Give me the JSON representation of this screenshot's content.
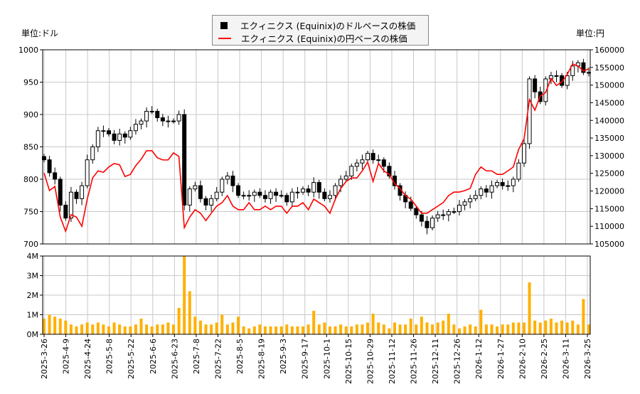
{
  "units": {
    "left": "単位:ドル",
    "right": "単位:円"
  },
  "legend": {
    "usd": "エクィニクス (Equinix)のドルベースの株価",
    "jpy": "エクィニクス (Equinix)の円ベースの株価"
  },
  "colors": {
    "usd": "#000000",
    "jpy": "#ff0000",
    "volume": "#ffb000",
    "grid": "#c8c8c8"
  },
  "chart_data": [
    {
      "type": "candlestick+line",
      "y_left": {
        "label": "単位:ドル",
        "range": [
          700,
          1000
        ],
        "ticks": [
          "700",
          "750",
          "800",
          "850",
          "900",
          "950",
          "1000"
        ]
      },
      "y_right": {
        "label": "単位:円",
        "range": [
          105000,
          160000
        ],
        "ticks": [
          "105000",
          "110000",
          "115000",
          "120000",
          "125000",
          "130000",
          "135000",
          "140000",
          "145000",
          "150000",
          "155000",
          "160000"
        ]
      },
      "grid": true,
      "legend_position": "top-center",
      "series": [
        {
          "name": "エクィニクス (Equinix)のドルベースの株価",
          "axis": "left",
          "close": [
            830,
            810,
            800,
            760,
            740,
            780,
            770,
            790,
            830,
            850,
            875,
            875,
            870,
            860,
            870,
            865,
            875,
            885,
            890,
            905,
            905,
            895,
            890,
            890,
            890,
            900,
            760,
            785,
            790,
            770,
            760,
            770,
            780,
            800,
            805,
            790,
            775,
            775,
            775,
            780,
            775,
            770,
            780,
            775,
            775,
            765,
            780,
            780,
            785,
            780,
            795,
            780,
            770,
            775,
            790,
            800,
            805,
            820,
            825,
            830,
            840,
            830,
            830,
            820,
            805,
            790,
            775,
            765,
            755,
            745,
            735,
            725,
            740,
            745,
            745,
            750,
            750,
            760,
            765,
            770,
            775,
            785,
            780,
            790,
            795,
            790,
            790,
            800,
            825,
            855,
            955,
            935,
            920,
            955,
            960,
            960,
            945,
            960,
            975,
            980,
            965,
            965
          ]
        },
        {
          "name": "エクィニクス (Equinix)の円ベースの株価",
          "axis": "right",
          "values": [
            125100,
            120100,
            121300,
            112600,
            108600,
            113300,
            112600,
            110000,
            117700,
            123700,
            125700,
            125300,
            126800,
            127800,
            127400,
            124100,
            124700,
            127200,
            129000,
            131400,
            131400,
            129400,
            128800,
            128800,
            130800,
            129800,
            109600,
            112600,
            114700,
            113700,
            111600,
            113700,
            115700,
            116700,
            118700,
            115700,
            114700,
            114700,
            116700,
            114700,
            114700,
            115700,
            114700,
            115700,
            115700,
            113700,
            115700,
            115700,
            116700,
            114700,
            117700,
            116700,
            115700,
            113700,
            117700,
            120700,
            122700,
            123700,
            123700,
            125700,
            128200,
            122700,
            127800,
            125700,
            124700,
            122100,
            120700,
            118700,
            117700,
            115700,
            113700,
            113700,
            114700,
            115700,
            116700,
            118700,
            119700,
            119700,
            120100,
            120700,
            124700,
            126800,
            125700,
            125700,
            124700,
            124700,
            125700,
            126800,
            131800,
            134800,
            145900,
            142900,
            146900,
            147900,
            151900,
            149900,
            150900,
            153000,
            156000,
            155400,
            154000,
            154600
          ]
        }
      ]
    },
    {
      "type": "bar",
      "y": {
        "range": [
          0,
          4
        ],
        "unit": "M",
        "ticks": [
          "0M",
          "1M",
          "2M",
          "3M",
          "4M"
        ]
      },
      "grid": true,
      "values": [
        0.8,
        1.0,
        0.9,
        0.8,
        0.7,
        0.5,
        0.4,
        0.5,
        0.6,
        0.5,
        0.6,
        0.5,
        0.4,
        0.6,
        0.5,
        0.4,
        0.4,
        0.5,
        0.8,
        0.5,
        0.4,
        0.5,
        0.5,
        0.6,
        0.5,
        1.35,
        4.0,
        2.2,
        0.9,
        0.7,
        0.5,
        0.5,
        0.6,
        1.0,
        0.5,
        0.6,
        0.9,
        0.4,
        0.3,
        0.4,
        0.5,
        0.4,
        0.4,
        0.4,
        0.4,
        0.5,
        0.4,
        0.4,
        0.4,
        0.5,
        1.2,
        0.5,
        0.6,
        0.4,
        0.4,
        0.5,
        0.4,
        0.4,
        0.5,
        0.5,
        0.6,
        1.05,
        0.6,
        0.5,
        0.3,
        0.6,
        0.5,
        0.5,
        0.8,
        0.5,
        0.9,
        0.6,
        0.5,
        0.6,
        0.7,
        1.05,
        0.5,
        0.3,
        0.4,
        0.5,
        0.4,
        1.25,
        0.5,
        0.5,
        0.4,
        0.5,
        0.5,
        0.6,
        0.6,
        0.6,
        2.65,
        0.7,
        0.6,
        0.7,
        0.8,
        0.6,
        0.7,
        0.6,
        0.7,
        0.5,
        1.8,
        0.5
      ]
    }
  ],
  "x_ticks": [
    "2025-3-26",
    "2025-4-9",
    "2025-4-24",
    "2025-5-8",
    "2025-5-22",
    "2025-6-6",
    "2025-6-23",
    "2025-7-8",
    "2025-7-22",
    "2025-8-5",
    "2025-8-19",
    "2025-9-3",
    "2025-9-17",
    "2025-10-1",
    "2025-10-15",
    "2025-10-29",
    "2025-11-12",
    "2025-11-26",
    "2025-12-11",
    "2025-12-26",
    "2026-1-12",
    "2026-1-27",
    "2026-2-10",
    "2026-2-25",
    "2026-3-11",
    "2026-3-25"
  ]
}
